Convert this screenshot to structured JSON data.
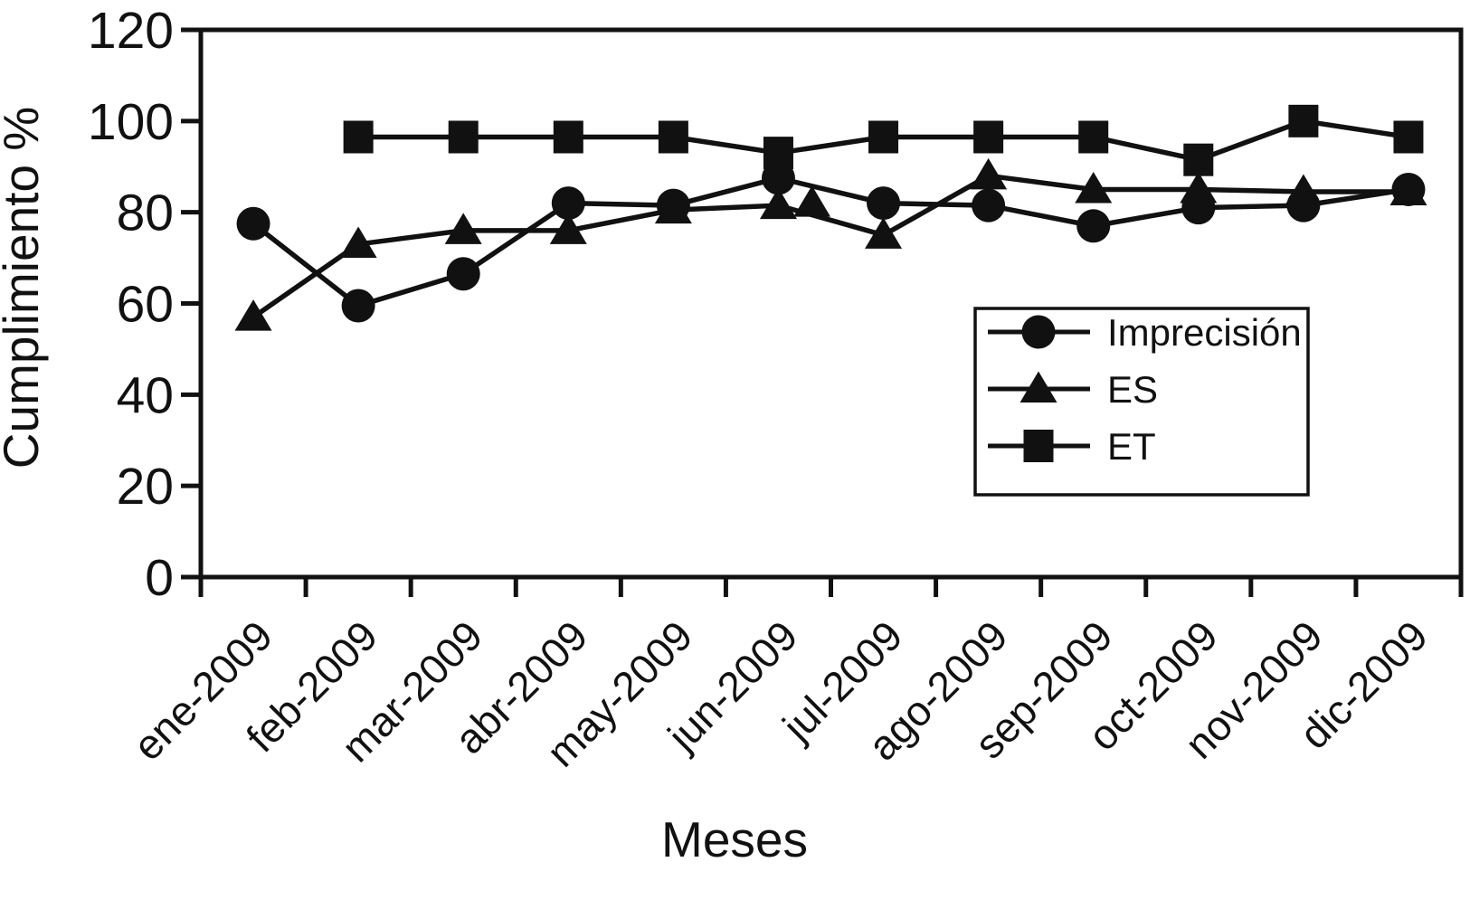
{
  "chart_data": {
    "type": "line",
    "title": "",
    "xlabel": "Meses",
    "ylabel": "Cumplimiento %",
    "ylim": [
      0,
      120
    ],
    "ytick_values": [
      0,
      20,
      40,
      60,
      80,
      100,
      120
    ],
    "categories": [
      "ene-2009",
      "feb-2009",
      "mar-2009",
      "abr-2009",
      "may-2009",
      "jun-2009",
      "jul-2009",
      "ago-2009",
      "sep-2009",
      "oct-2009",
      "nov-2009",
      "dic-2009"
    ],
    "series": [
      {
        "name": "Imprecisión",
        "marker": "circle",
        "values": [
          77.5,
          59.5,
          66.5,
          82,
          81.5,
          87.5,
          82,
          81.5,
          77,
          81,
          81.5,
          85
        ]
      },
      {
        "name": "ES",
        "marker": "triangle",
        "values": [
          57,
          73,
          76,
          76,
          80.5,
          81.5,
          75,
          88,
          85,
          85,
          84.5,
          84.5
        ],
        "extra_markers": [
          {
            "between": [
              "jun-2009",
              "jul-2009"
            ],
            "x_index": 5.32,
            "value": 82
          }
        ]
      },
      {
        "name": "ET",
        "marker": "square",
        "values": [
          null,
          96.5,
          96.5,
          96.5,
          96.5,
          93,
          96.5,
          96.5,
          96.5,
          91.5,
          100,
          96.5
        ]
      }
    ],
    "legend": {
      "position": "middle-right",
      "entries": [
        "Imprecisión",
        "ES",
        "ET"
      ]
    },
    "grid": false,
    "color": "#111111",
    "background": "#ffffff"
  }
}
